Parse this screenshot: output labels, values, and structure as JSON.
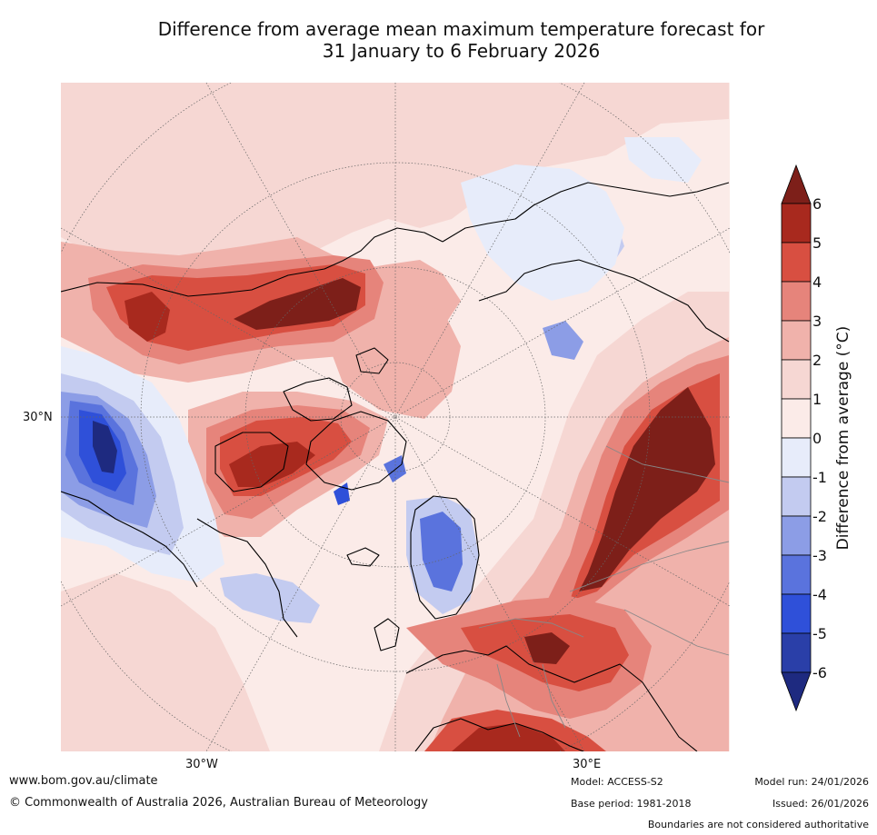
{
  "title_line1": "Difference from average mean maximum temperature forecast for",
  "title_line2": "31 January to 6 February 2026",
  "map": {
    "projection": "north-polar-stereographic",
    "lat_label": "30°N",
    "lon_labels": [
      "30°W",
      "30°E"
    ],
    "background_color": "#fbebe8"
  },
  "colorbar": {
    "title": "Difference from average (°C)",
    "ticks": [
      "6",
      "5",
      "4",
      "3",
      "2",
      "1",
      "0",
      "-1",
      "-2",
      "-3",
      "-4",
      "-5",
      "-6"
    ],
    "colors_top_to_bottom": [
      "#7d1f19",
      "#a8291e",
      "#d84f41",
      "#e6847b",
      "#f0b2ab",
      "#f6d7d3",
      "#fbebe8",
      "#e7ecfa",
      "#c3cbf0",
      "#8c9de6",
      "#5a73dd",
      "#2f50d9",
      "#2a3fa8",
      "#1e2a80"
    ]
  },
  "footer": {
    "website": "www.bom.gov.au/climate",
    "copyright": "© Commonwealth of Australia 2026, Australian Bureau of Meteorology",
    "model": "Model: ACCESS-S2",
    "base_period": "Base period: 1981-2018",
    "model_run": "Model run: 24/01/2026",
    "issued": "Issued: 26/01/2026",
    "disclaimer": "Boundaries are not considered authoritative"
  }
}
